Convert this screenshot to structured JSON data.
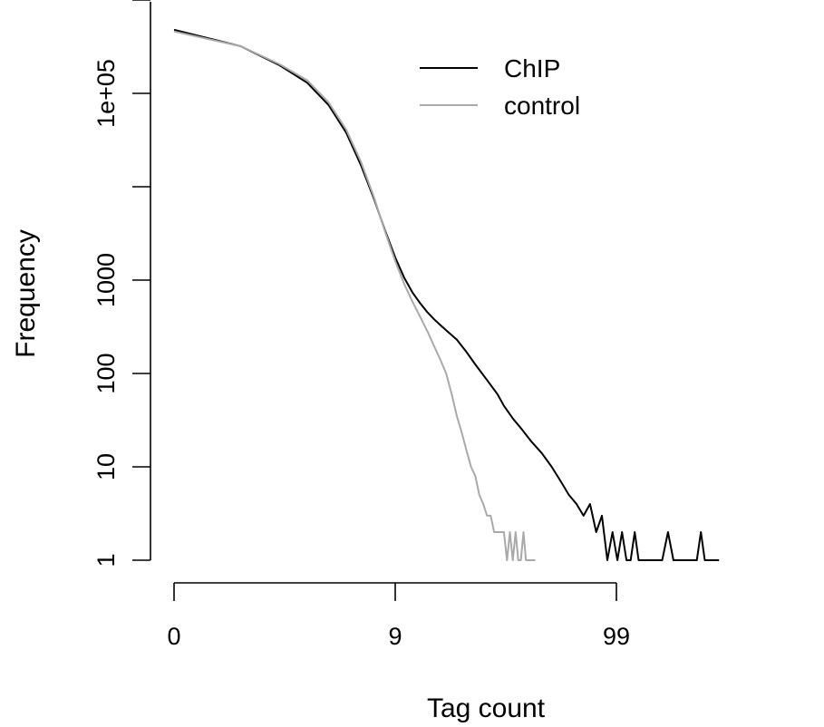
{
  "chart_data": {
    "type": "line",
    "xlabel": "Tag count",
    "ylabel": "Frequency",
    "x_scale": "log(x+1)",
    "y_scale": "log10",
    "xlim": [
      0,
      300
    ],
    "ylim": [
      1,
      1000000
    ],
    "x_ticks": [
      {
        "value": 0,
        "label": "0"
      },
      {
        "value": 9,
        "label": "9"
      },
      {
        "value": 99,
        "label": "99"
      }
    ],
    "y_ticks": [
      {
        "value": 1,
        "label": "1"
      },
      {
        "value": 10,
        "label": "10"
      },
      {
        "value": 100,
        "label": "100"
      },
      {
        "value": 1000,
        "label": "1000"
      },
      {
        "value": 10000,
        "label": ""
      },
      {
        "value": 100000,
        "label": "1e+05"
      }
    ],
    "legend": {
      "position": "top-right"
    },
    "series": [
      {
        "name": "ChIP",
        "color": "#000000",
        "x": [
          0,
          1,
          2,
          3,
          4,
          5,
          6,
          7,
          8,
          9,
          10,
          11,
          12,
          13,
          14,
          15,
          16,
          18,
          20,
          22,
          25,
          28,
          30,
          33,
          36,
          40,
          45,
          50,
          55,
          60,
          65,
          70,
          75,
          80,
          85,
          90,
          95,
          100,
          105,
          110,
          115,
          120,
          125,
          130,
          140,
          150,
          160,
          170,
          180,
          190,
          200,
          210,
          220,
          230,
          240,
          250,
          260,
          270,
          280,
          290
        ],
        "y": [
          480000,
          320000,
          200000,
          130000,
          75000,
          38000,
          17000,
          7500,
          3400,
          1750,
          1050,
          730,
          560,
          450,
          380,
          330,
          290,
          230,
          170,
          125,
          85,
          60,
          45,
          33,
          26,
          19,
          14,
          10,
          7,
          5,
          4,
          3,
          4,
          2,
          3,
          1,
          2,
          1,
          2,
          1,
          1,
          2,
          1,
          1,
          1,
          1,
          1,
          2,
          1,
          1,
          1,
          1,
          1,
          1,
          2,
          1,
          1,
          1,
          1,
          1
        ]
      },
      {
        "name": "control",
        "color": "#a9a9a9",
        "x": [
          0,
          1,
          2,
          3,
          4,
          5,
          6,
          7,
          8,
          9,
          10,
          11,
          12,
          13,
          14,
          15,
          16,
          17,
          18,
          19,
          20,
          21,
          22,
          23,
          24,
          25,
          26,
          27,
          28,
          29,
          30,
          31,
          32,
          33,
          34,
          35,
          36,
          37,
          38,
          39,
          40,
          41,
          42
        ],
        "y": [
          460000,
          320000,
          205000,
          138000,
          80000,
          41000,
          18500,
          7800,
          3300,
          1600,
          900,
          580,
          400,
          280,
          195,
          140,
          100,
          60,
          35,
          23,
          15,
          10,
          8,
          5,
          4,
          3,
          3,
          2,
          2,
          2,
          2,
          1,
          2,
          1,
          2,
          1,
          1,
          2,
          1,
          1,
          1,
          1,
          1
        ]
      }
    ]
  }
}
